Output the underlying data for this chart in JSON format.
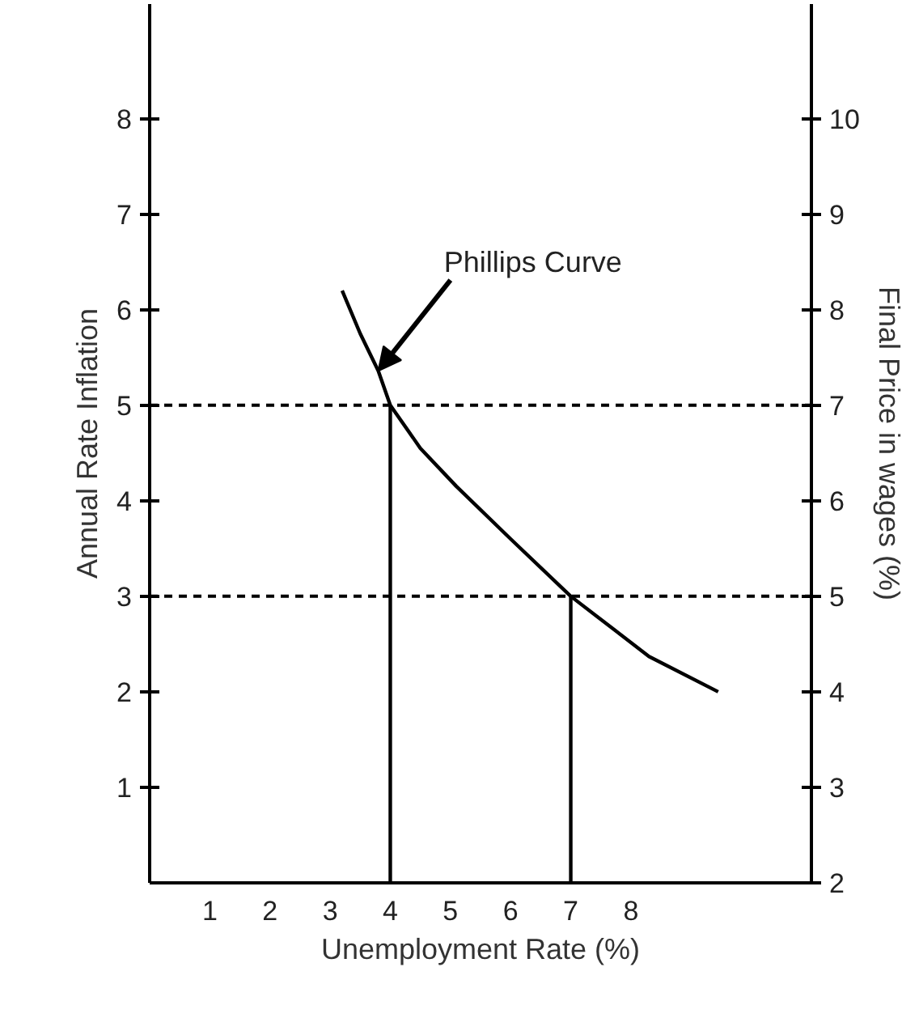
{
  "chart_data": {
    "type": "line",
    "xlabel": "Unemployment Rate (%)",
    "ylabel": "Annual Rate Inflation",
    "y2label": "Final Price in wages (%)",
    "xlim": [
      0,
      11
    ],
    "ylim": [
      0,
      9.2
    ],
    "y2lim": [
      2,
      11.2
    ],
    "xticks": [
      {
        "value": 1,
        "label": "1"
      },
      {
        "value": 2,
        "label": "2"
      },
      {
        "value": 3,
        "label": "3"
      },
      {
        "value": 4,
        "label": "4"
      },
      {
        "value": 5,
        "label": "5"
      },
      {
        "value": 6,
        "label": "6"
      },
      {
        "value": 7,
        "label": "7"
      },
      {
        "value": 8,
        "label": "8"
      }
    ],
    "yticks": [
      1,
      2,
      3,
      4,
      5,
      6,
      7,
      8
    ],
    "y2ticks": [
      2,
      3,
      4,
      5,
      6,
      7,
      8,
      9,
      10
    ],
    "series": [
      {
        "color": "#000000",
        "x": [
          3.2,
          3.5,
          3.8,
          4.0,
          4.5,
          5.1,
          6.0,
          7.0,
          8.3,
          9.45
        ],
        "values": [
          6.2,
          5.75,
          5.36,
          5.0,
          4.55,
          4.15,
          3.6,
          3.0,
          2.37,
          2.0
        ]
      },
      {
        "color": "#000000",
        "x": [
          4.0,
          4.0
        ],
        "values": [
          0,
          5.0
        ]
      },
      {
        "color": "#000000",
        "x": [
          7.0,
          7.0
        ],
        "values": [
          0,
          3.0
        ]
      }
    ],
    "ref_lines": [
      {
        "axis": "y",
        "value": 5,
        "line_style": "dashed",
        "color": "#000000"
      },
      {
        "axis": "y",
        "value": 3,
        "line_style": "dashed",
        "color": "#000000"
      }
    ],
    "annotations": [
      {
        "text": "Phillips Curve",
        "x": 3.8,
        "y": 5.36
      }
    ],
    "grid": false,
    "marker": "none",
    "line_style": "solid"
  }
}
